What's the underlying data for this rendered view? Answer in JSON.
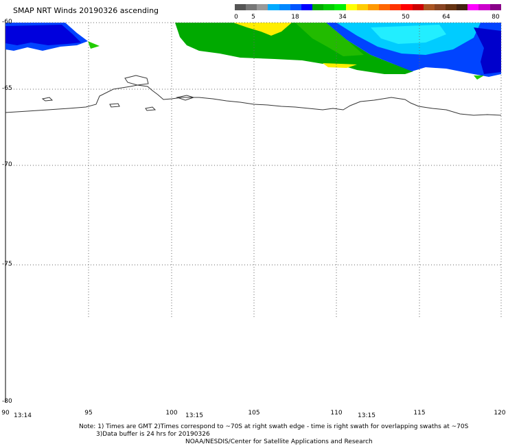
{
  "title": "SMAP NRT Winds 20190326 ascending",
  "colorbar": {
    "labels": [
      "0",
      "5",
      "18",
      "34",
      "50",
      "64",
      "80"
    ],
    "segments": [
      {
        "color": "#555555"
      },
      {
        "color": "#777777"
      },
      {
        "color": "#999999"
      },
      {
        "color": "#00aaff"
      },
      {
        "color": "#0088ff"
      },
      {
        "color": "#0055ff"
      },
      {
        "color": "#0000ff"
      },
      {
        "color": "#00aa00"
      },
      {
        "color": "#00cc00"
      },
      {
        "color": "#00ee00"
      },
      {
        "color": "#ffff00"
      },
      {
        "color": "#ffcc00"
      },
      {
        "color": "#ff9900"
      },
      {
        "color": "#ff6600"
      },
      {
        "color": "#ff3300"
      },
      {
        "color": "#ff0000"
      },
      {
        "color": "#cc0000"
      },
      {
        "color": "#aa5522"
      },
      {
        "color": "#884422"
      },
      {
        "color": "#663311"
      },
      {
        "color": "#442211"
      },
      {
        "color": "#ff00ff"
      },
      {
        "color": "#cc00cc"
      },
      {
        "color": "#880088"
      }
    ]
  },
  "map": {
    "lat_labels": [
      "-60",
      "-65",
      "-70",
      "-75",
      "-80"
    ],
    "lon_labels": [
      "90",
      "95",
      "100",
      "105",
      "110",
      "115",
      "120"
    ],
    "time_labels": [
      "13:14",
      "13:15",
      "13:15"
    ],
    "wind_colors": {
      "low_blue": "#0000ee",
      "mid_blue": "#0066ff",
      "cyan": "#00ddff",
      "green": "#00bb00",
      "bright_green": "#22cc00",
      "yellow": "#ffee00"
    },
    "coastline_color": "#333333"
  },
  "notes": {
    "line1": "Note: 1) Times are GMT 2)Times correspond to ~70S at right swath edge - time is right swath for overlapping swaths at ~70S",
    "line2": "3)Data buffer is 24 hrs for 20190326",
    "line3": "NOAA/NESDIS/Center for Satellite Applications and Research"
  }
}
